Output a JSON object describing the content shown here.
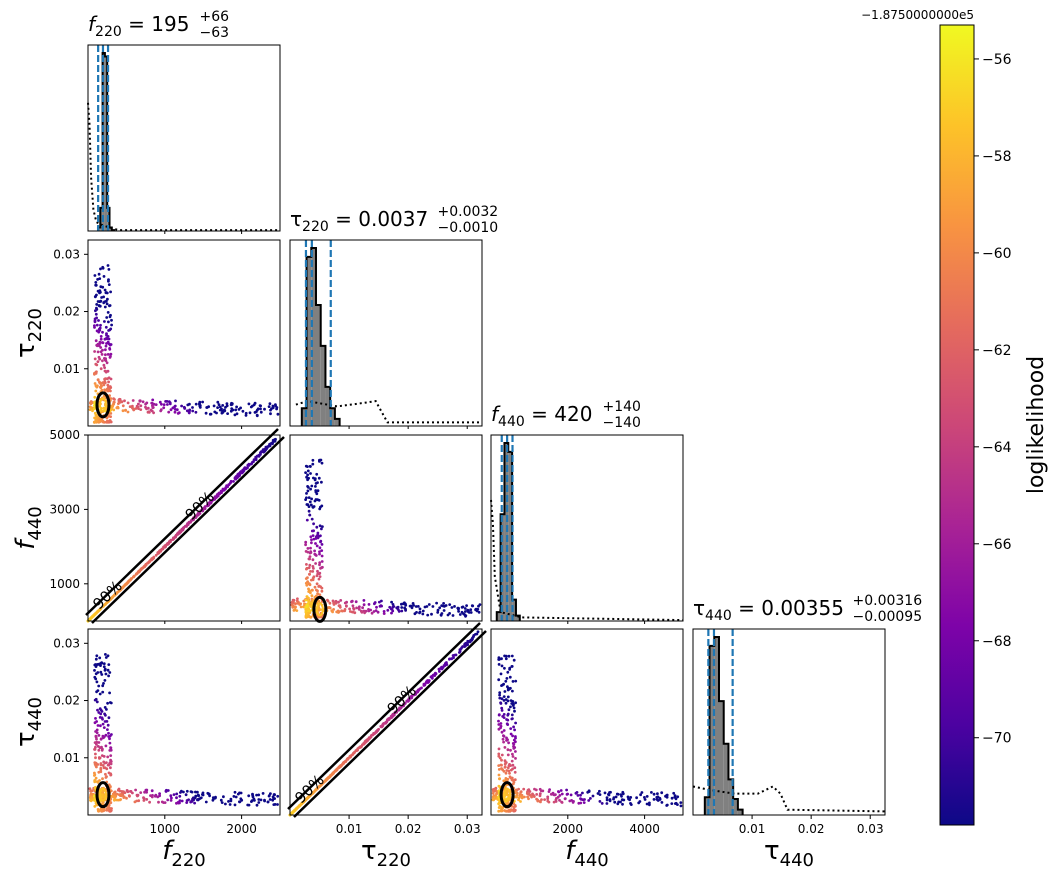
{
  "chart_data": {
    "type": "corner",
    "parameters": [
      {
        "name": "f220",
        "label": "f",
        "sub": "220",
        "math": "italic",
        "range": [
          0,
          2500
        ],
        "ticks": [
          1000,
          2000
        ],
        "tick_labels": [
          "1000",
          "2000"
        ],
        "title_value": "195",
        "title_plus": "+66",
        "title_minus": "−63",
        "median": 195,
        "lower": 132,
        "upper": 261
      },
      {
        "name": "tau220",
        "label": "τ",
        "sub": "220",
        "math": "greek",
        "range": [
          0,
          0.0325
        ],
        "ticks": [
          0.01,
          0.02,
          0.03
        ],
        "tick_labels": [
          "0.01",
          "0.02",
          "0.03"
        ],
        "title_value": "0.0037",
        "title_plus": "+0.0032",
        "title_minus": "−0.0010",
        "median": 0.0037,
        "lower": 0.0027,
        "upper": 0.0069
      },
      {
        "name": "f440",
        "label": "f",
        "sub": "440",
        "math": "italic",
        "range": [
          0,
          5000
        ],
        "ticks": [
          1000,
          3000,
          5000
        ],
        "tick_labels": [
          "1000",
          "3000",
          "5000"
        ],
        "x_ticks": [
          2000,
          4000
        ],
        "x_tick_labels": [
          "2000",
          "4000"
        ],
        "title_value": "420",
        "title_plus": "+140",
        "title_minus": "−140",
        "median": 420,
        "lower": 280,
        "upper": 560
      },
      {
        "name": "tau440",
        "label": "τ",
        "sub": "440",
        "math": "greek",
        "range": [
          0,
          0.0325
        ],
        "ticks": [
          0.01,
          0.02,
          0.03
        ],
        "tick_labels": [
          "0.01",
          "0.02",
          "0.03"
        ],
        "title_value": "0.00355",
        "title_plus": "+0.00316",
        "title_minus": "−0.00095",
        "median": 0.00355,
        "lower": 0.0026,
        "upper": 0.00671
      }
    ],
    "marginals": [
      {
        "param": "f220",
        "hist_edges": [
          130,
          160,
          190,
          220,
          250,
          280,
          310,
          340
        ],
        "hist_counts": [
          0.02,
          0.13,
          1.0,
          0.98,
          0.13,
          0.02,
          0.005
        ],
        "prior_x": [
          0,
          20,
          40,
          70,
          110,
          200,
          400,
          2500
        ],
        "prior_y": [
          0.72,
          0.6,
          0.3,
          0.12,
          0.05,
          0.03,
          0.005,
          0.005
        ]
      },
      {
        "param": "tau220",
        "hist_edges": [
          0.002,
          0.0028,
          0.0036,
          0.0044,
          0.0052,
          0.006,
          0.0068,
          0.0076,
          0.0084
        ],
        "hist_counts": [
          0.1,
          0.95,
          1.0,
          0.68,
          0.45,
          0.22,
          0.1,
          0.04
        ],
        "prior_x": [
          0.001,
          0.003,
          0.008,
          0.0125,
          0.0145,
          0.0155,
          0.0165,
          0.0325
        ],
        "prior_y": [
          0.12,
          0.14,
          0.11,
          0.13,
          0.14,
          0.08,
          0.02,
          0.02
        ]
      },
      {
        "param": "f440",
        "hist_edges": [
          150,
          250,
          350,
          450,
          550,
          650,
          750
        ],
        "hist_counts": [
          0.05,
          0.6,
          1.0,
          0.95,
          0.12,
          0.03
        ],
        "prior_x": [
          0,
          50,
          100,
          250,
          800,
          5000
        ],
        "prior_y": [
          0.68,
          0.55,
          0.25,
          0.05,
          0.02,
          0.005
        ]
      },
      {
        "param": "tau440",
        "hist_edges": [
          0.002,
          0.0028,
          0.0036,
          0.0044,
          0.0052,
          0.006,
          0.0068,
          0.0076,
          0.0084
        ],
        "hist_counts": [
          0.1,
          0.95,
          1.0,
          0.64,
          0.4,
          0.2,
          0.09,
          0.03
        ],
        "prior_x": [
          0.0,
          0.003,
          0.007,
          0.011,
          0.0135,
          0.0148,
          0.016,
          0.0325
        ],
        "prior_y": [
          0.16,
          0.14,
          0.12,
          0.12,
          0.16,
          0.12,
          0.03,
          0.02
        ]
      }
    ],
    "joint_panels": [
      {
        "x": "f220",
        "y": "tau220",
        "contour_labels": []
      },
      {
        "x": "f220",
        "y": "f440",
        "contour_labels": [
          "90%",
          "90%"
        ]
      },
      {
        "x": "tau220",
        "y": "f440",
        "contour_labels": []
      },
      {
        "x": "f220",
        "y": "tau440",
        "contour_labels": []
      },
      {
        "x": "tau220",
        "y": "tau440",
        "contour_labels": [
          "90%",
          "90%"
        ]
      },
      {
        "x": "f440",
        "y": "tau440",
        "contour_labels": []
      }
    ],
    "colorbar": {
      "label": "loglikelihood",
      "offset_text": "−1.8750000000e5",
      "colormap": "plasma",
      "range": [
        -71.8,
        -55.3
      ],
      "ticks": [
        -56,
        -58,
        -60,
        -62,
        -64,
        -66,
        -68,
        -70
      ],
      "tick_labels": [
        "−56",
        "−58",
        "−60",
        "−62",
        "−64",
        "−66",
        "−68",
        "−70"
      ]
    },
    "colors": {
      "credible_lines": "#1f77b4",
      "histogram_fill": "#808080",
      "contour": "#000000"
    }
  }
}
